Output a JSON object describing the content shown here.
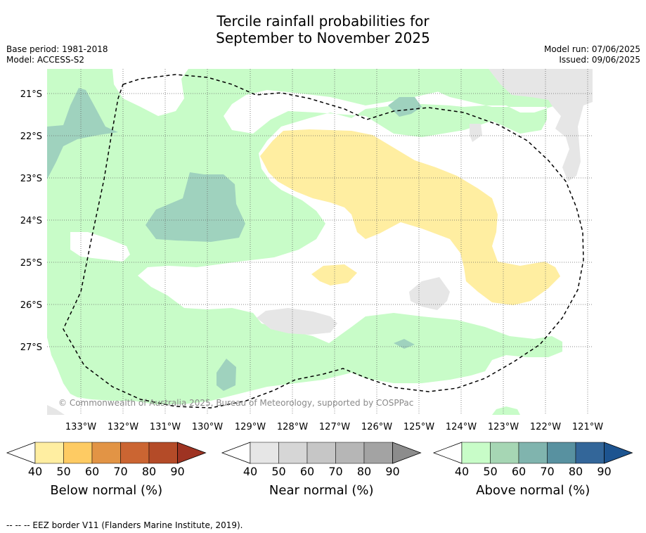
{
  "title_line1": "Tercile rainfall probabilities for",
  "title_line2": "September to November 2025",
  "meta": {
    "base_period": "Base period: 1981-2018",
    "model": "Model: ACCESS-S2",
    "model_run": "Model run: 07/06/2025",
    "issued": "Issued: 09/06/2025"
  },
  "copyright": "© Commonwealth of Australia 2025, Bureau of Meteorology, supported by COSPPac",
  "lat_labels": [
    "21°S",
    "22°S",
    "23°S",
    "24°S",
    "25°S",
    "26°S",
    "27°S"
  ],
  "lon_labels": [
    "133°W",
    "132°W",
    "131°W",
    "130°W",
    "129°W",
    "128°W",
    "127°W",
    "126°W",
    "125°W",
    "124°W",
    "123°W",
    "122°W",
    "121°W"
  ],
  "colorbars": [
    {
      "title": "Below normal (%)",
      "ticks": [
        "40",
        "50",
        "60",
        "70",
        "80",
        "90"
      ],
      "colors": [
        "#ffffff",
        "#ffeea1",
        "#fecb63",
        "#e29445",
        "#cb6532",
        "#b44b28",
        "#9e3322"
      ]
    },
    {
      "title": "Near normal (%)",
      "ticks": [
        "40",
        "50",
        "60",
        "70",
        "80",
        "90"
      ],
      "colors": [
        "#ffffff",
        "#e6e6e6",
        "#d6d6d6",
        "#c6c6c6",
        "#b6b6b6",
        "#a3a3a3",
        "#8c8c8c"
      ]
    },
    {
      "title": "Above normal (%)",
      "ticks": [
        "40",
        "50",
        "60",
        "70",
        "80",
        "90"
      ],
      "colors": [
        "#ffffff",
        "#c8fcc8",
        "#a6d6b4",
        "#80b4ae",
        "#5891a0",
        "#336699",
        "#1d5490"
      ]
    }
  ],
  "footer": "--  --  -- EEZ border V11 (Flanders Marine Institute, 2019)."
}
